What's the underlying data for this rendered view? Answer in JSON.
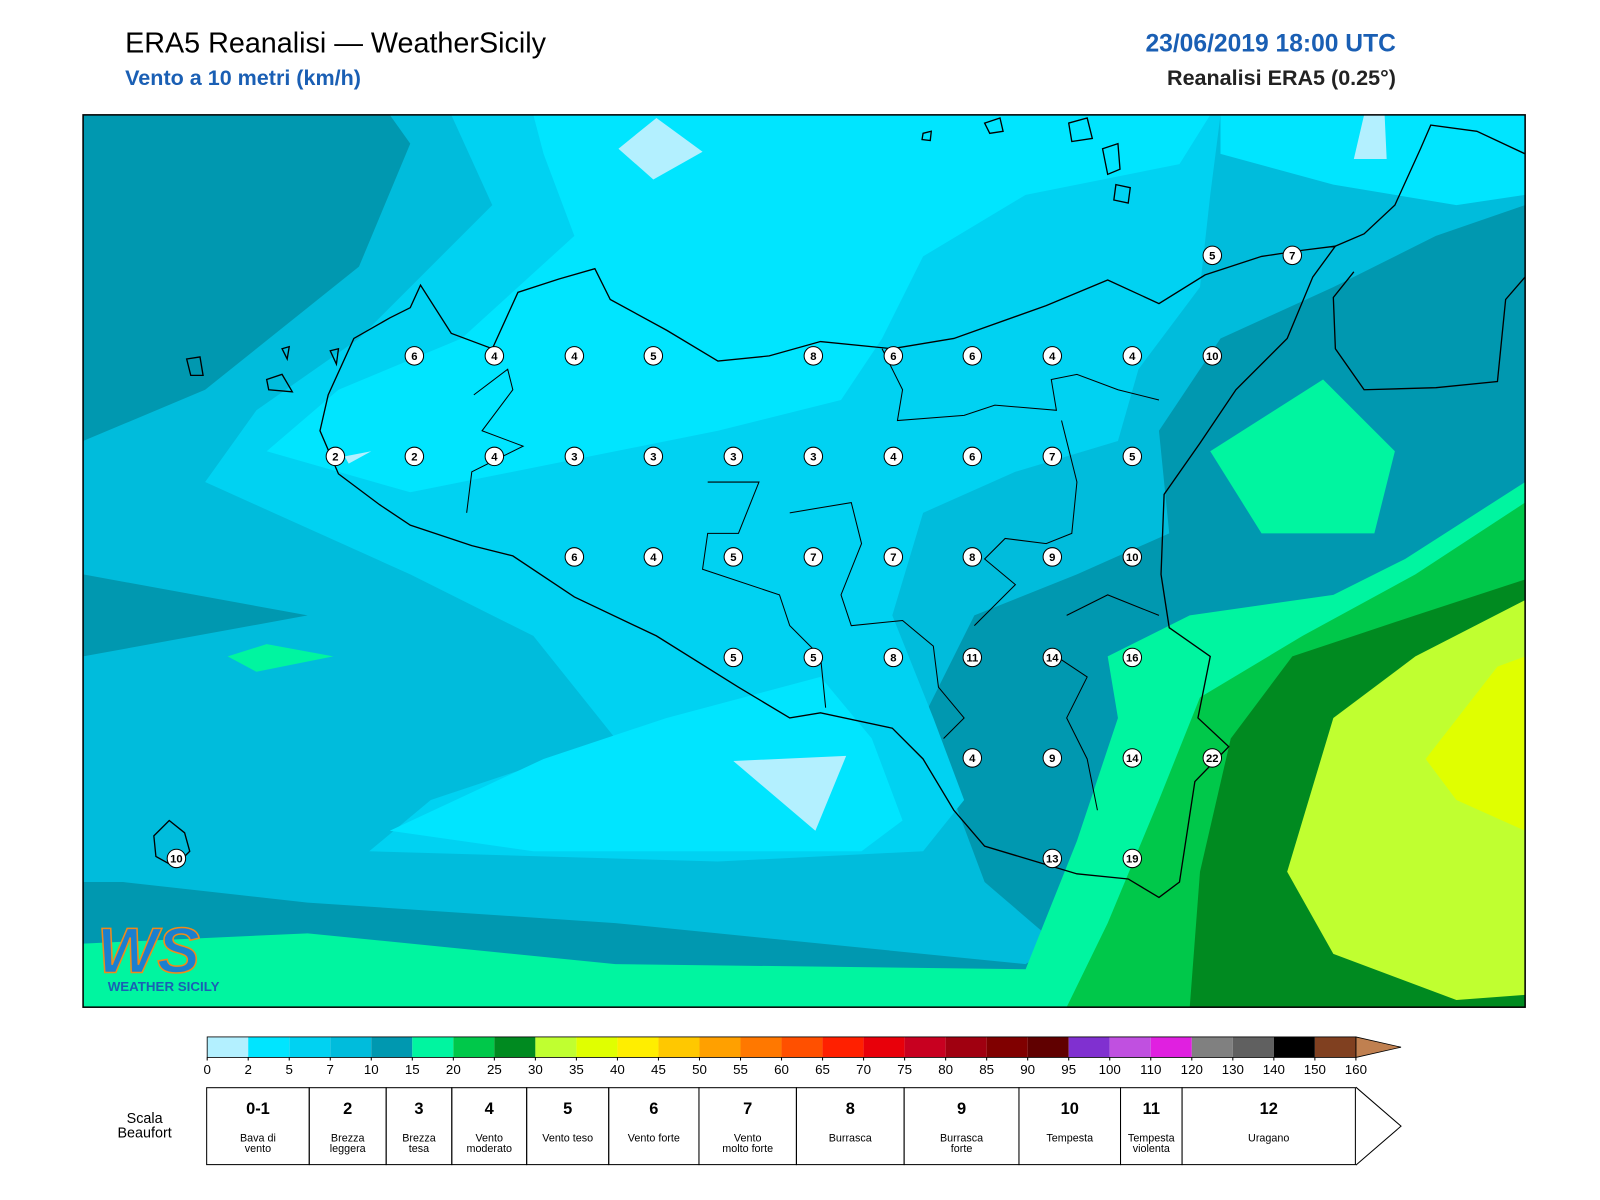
{
  "header": {
    "title": "ERA5 Reanalisi — WeatherSicily",
    "subtitle": "Vento a 10 metri (km/h)",
    "date": "23/06/2019 18:00 UTC",
    "source": "Reanalisi ERA5 (0.25°)"
  },
  "map": {
    "stations": [
      5,
      7,
      6,
      4,
      4,
      5,
      8,
      6,
      6,
      4,
      4,
      10,
      2,
      2,
      4,
      3,
      3,
      3,
      3,
      4,
      6,
      7,
      5,
      6,
      4,
      5,
      7,
      7,
      8,
      9,
      10,
      5,
      5,
      8,
      11,
      14,
      16,
      4,
      9,
      14,
      22,
      10,
      13,
      19
    ],
    "logo": {
      "mark": "WS",
      "name": "WEATHER SICILY"
    }
  },
  "colorbar": {
    "ticks": [
      0,
      2,
      5,
      7,
      10,
      15,
      20,
      25,
      30,
      35,
      40,
      45,
      50,
      55,
      60,
      65,
      70,
      75,
      80,
      85,
      90,
      95,
      100,
      110,
      120,
      130,
      140,
      150,
      160
    ],
    "colors": [
      "#b3f0ff",
      "#00e5ff",
      "#00d2f2",
      "#00bcdc",
      "#0098b0",
      "#00f5a0",
      "#00c84a",
      "#008a20",
      "#c0ff30",
      "#e0ff00",
      "#ffee00",
      "#ffc800",
      "#ffa000",
      "#ff7800",
      "#ff5000",
      "#ff2000",
      "#e8000a",
      "#c80020",
      "#a00010",
      "#800000",
      "#600000",
      "#8030d0",
      "#c050e0",
      "#e020e0",
      "#808080",
      "#606060",
      "#000000",
      "#804020",
      "#c08050"
    ]
  },
  "beaufort": {
    "label": "Scala Beaufort",
    "levels": [
      {
        "force": "0-1",
        "name": "Bava di vento"
      },
      {
        "force": "2",
        "name": "Brezza leggera"
      },
      {
        "force": "3",
        "name": "Brezza tesa"
      },
      {
        "force": "4",
        "name": "Vento moderato"
      },
      {
        "force": "5",
        "name": "Vento teso"
      },
      {
        "force": "6",
        "name": "Vento forte"
      },
      {
        "force": "7",
        "name": "Vento molto forte"
      },
      {
        "force": "8",
        "name": "Burrasca"
      },
      {
        "force": "9",
        "name": "Burrasca forte"
      },
      {
        "force": "10",
        "name": "Tempesta"
      },
      {
        "force": "11",
        "name": "Tempesta violenta"
      },
      {
        "force": "12",
        "name": "Uragano"
      }
    ]
  }
}
